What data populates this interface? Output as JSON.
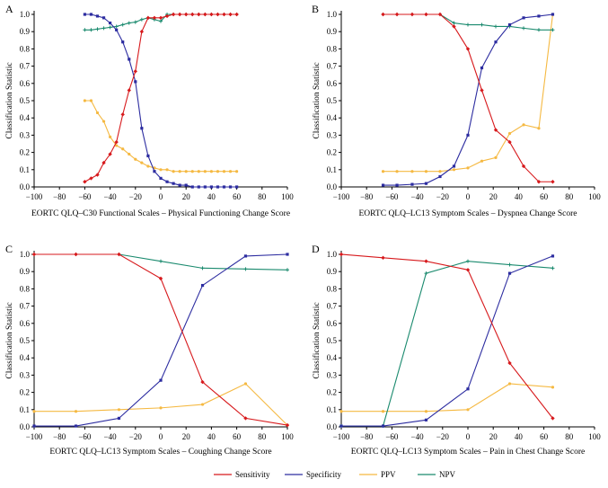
{
  "legend": [
    {
      "name": "Sensitivity",
      "color": "#d7191c"
    },
    {
      "name": "Specificity",
      "color": "#2c2ca0"
    },
    {
      "name": "PPV",
      "color": "#f5b942"
    },
    {
      "name": "NPV",
      "color": "#1a8a6e"
    }
  ],
  "chart_data": [
    {
      "type": "line",
      "panel": "A",
      "xlabel": "EORTC QLQ–C30 Functional Scales – Physical Functioning Change Score",
      "ylabel": "Classification Statistic",
      "xlim": [
        -100,
        100
      ],
      "ylim": [
        0,
        1.0
      ],
      "xticks": [
        -100,
        -80,
        -60,
        -40,
        -20,
        0,
        20,
        40,
        60,
        80,
        100
      ],
      "yticks": [
        0,
        0.1,
        0.2,
        0.3,
        0.4,
        0.5,
        0.6,
        0.7,
        0.8,
        0.9,
        1.0
      ],
      "series": [
        {
          "name": "Sensitivity",
          "x": [
            -60,
            -55,
            -50,
            -45,
            -40,
            -35,
            -30,
            -25,
            -20,
            -15,
            -10,
            -5,
            0,
            5,
            10,
            15,
            20,
            25,
            30,
            35,
            40,
            45,
            50,
            55,
            60
          ],
          "values": [
            0.03,
            0.05,
            0.07,
            0.14,
            0.19,
            0.26,
            0.42,
            0.56,
            0.67,
            0.9,
            0.98,
            0.98,
            0.98,
            0.99,
            1.0,
            1.0,
            1.0,
            1.0,
            1.0,
            1.0,
            1.0,
            1.0,
            1.0,
            1.0,
            1.0
          ]
        },
        {
          "name": "Specificity",
          "x": [
            -60,
            -55,
            -50,
            -45,
            -40,
            -35,
            -30,
            -25,
            -20,
            -15,
            -10,
            -5,
            0,
            5,
            10,
            15,
            20,
            25,
            30,
            35,
            40,
            45,
            50,
            55,
            60
          ],
          "values": [
            1.0,
            1.0,
            0.99,
            0.98,
            0.95,
            0.91,
            0.84,
            0.74,
            0.61,
            0.34,
            0.18,
            0.09,
            0.05,
            0.03,
            0.02,
            0.01,
            0.01,
            0.0,
            0.0,
            0.0,
            0.0,
            0.0,
            0.0,
            0.0,
            0.0
          ]
        },
        {
          "name": "PPV",
          "x": [
            -60,
            -55,
            -50,
            -45,
            -40,
            -35,
            -30,
            -25,
            -20,
            -15,
            -10,
            -5,
            0,
            5,
            10,
            15,
            20,
            25,
            30,
            35,
            40,
            45,
            50,
            55,
            60
          ],
          "values": [
            0.5,
            0.5,
            0.43,
            0.38,
            0.29,
            0.24,
            0.22,
            0.19,
            0.16,
            0.14,
            0.12,
            0.11,
            0.1,
            0.1,
            0.09,
            0.09,
            0.09,
            0.09,
            0.09,
            0.09,
            0.09,
            0.09,
            0.09,
            0.09,
            0.09
          ]
        },
        {
          "name": "NPV",
          "x": [
            -60,
            -55,
            -50,
            -45,
            -40,
            -35,
            -30,
            -25,
            -20,
            -15,
            -10,
            -5,
            0,
            5,
            10,
            15,
            20,
            25,
            30,
            35,
            40,
            45,
            50,
            55,
            60
          ],
          "values": [
            0.91,
            0.91,
            0.915,
            0.92,
            0.925,
            0.93,
            0.94,
            0.95,
            0.955,
            0.97,
            0.98,
            0.97,
            0.96,
            1.0,
            1.0,
            1.0,
            1.0,
            1.0,
            1.0,
            1.0,
            1.0,
            1.0,
            1.0,
            1.0,
            1.0
          ]
        }
      ]
    },
    {
      "type": "line",
      "panel": "B",
      "xlabel": "EORTC QLQ–LC13 Symptom Scales – Dyspnea Change Score",
      "ylabel": "Classification Statistic",
      "xlim": [
        -100,
        100
      ],
      "ylim": [
        0,
        1.0
      ],
      "xticks": [
        -100,
        -80,
        -60,
        -40,
        -20,
        0,
        20,
        40,
        60,
        80,
        100
      ],
      "yticks": [
        0,
        0.1,
        0.2,
        0.3,
        0.4,
        0.5,
        0.6,
        0.7,
        0.8,
        0.9,
        1.0
      ],
      "series": [
        {
          "name": "Sensitivity",
          "x": [
            -67,
            -56,
            -44,
            -33,
            -22,
            -11,
            0,
            11,
            22,
            33,
            44,
            56,
            67
          ],
          "values": [
            1.0,
            1.0,
            1.0,
            1.0,
            1.0,
            0.93,
            0.8,
            0.56,
            0.33,
            0.26,
            0.12,
            0.03,
            0.03
          ]
        },
        {
          "name": "Specificity",
          "x": [
            -67,
            -56,
            -44,
            -33,
            -22,
            -11,
            0,
            11,
            22,
            33,
            44,
            56,
            67
          ],
          "values": [
            0.01,
            0.01,
            0.015,
            0.02,
            0.06,
            0.12,
            0.3,
            0.69,
            0.84,
            0.94,
            0.98,
            0.99,
            1.0
          ]
        },
        {
          "name": "PPV",
          "x": [
            -67,
            -56,
            -44,
            -33,
            -22,
            -11,
            0,
            11,
            22,
            33,
            44,
            56,
            67
          ],
          "values": [
            0.09,
            0.09,
            0.09,
            0.09,
            0.09,
            0.1,
            0.11,
            0.15,
            0.17,
            0.31,
            0.36,
            0.34,
            1.0
          ]
        },
        {
          "name": "NPV",
          "x": [
            -67,
            -56,
            -44,
            -33,
            -22,
            -11,
            0,
            11,
            22,
            33,
            44,
            56,
            67
          ],
          "values": [
            1.0,
            1.0,
            1.0,
            1.0,
            1.0,
            0.95,
            0.94,
            0.94,
            0.93,
            0.93,
            0.92,
            0.91,
            0.91
          ]
        }
      ]
    },
    {
      "type": "line",
      "panel": "C",
      "xlabel": "EORTC QLQ–LC13 Symptom Scales – Coughing Change Score",
      "ylabel": "Classification Statistic",
      "xlim": [
        -100,
        100
      ],
      "ylim": [
        0,
        1.0
      ],
      "xticks": [
        -100,
        -80,
        -60,
        -40,
        -20,
        0,
        20,
        40,
        60,
        80,
        100
      ],
      "yticks": [
        0,
        0.1,
        0.2,
        0.3,
        0.4,
        0.5,
        0.6,
        0.7,
        0.8,
        0.9,
        1.0
      ],
      "series": [
        {
          "name": "Sensitivity",
          "x": [
            -100,
            -67,
            -33,
            0,
            33,
            67,
            100
          ],
          "values": [
            1.0,
            1.0,
            1.0,
            0.86,
            0.26,
            0.05,
            0.01
          ]
        },
        {
          "name": "Specificity",
          "x": [
            -100,
            -67,
            -33,
            0,
            33,
            67,
            100
          ],
          "values": [
            0.005,
            0.005,
            0.05,
            0.27,
            0.82,
            0.99,
            1.0
          ]
        },
        {
          "name": "PPV",
          "x": [
            -100,
            -67,
            -33,
            0,
            33,
            67,
            100
          ],
          "values": [
            0.09,
            0.09,
            0.1,
            0.11,
            0.13,
            0.25,
            0.01
          ]
        },
        {
          "name": "NPV",
          "x": [
            -100,
            -67,
            -33,
            0,
            33,
            67,
            100
          ],
          "values": [
            1.0,
            1.0,
            1.0,
            0.96,
            0.92,
            0.915,
            0.91
          ]
        }
      ]
    },
    {
      "type": "line",
      "panel": "D",
      "xlabel": "EORTC QLQ–LC13 Symptom Scales – Pain in Chest Change Score",
      "ylabel": "Classification Statistic",
      "xlim": [
        -100,
        100
      ],
      "ylim": [
        0,
        1.0
      ],
      "xticks": [
        -100,
        -80,
        -60,
        -40,
        -20,
        0,
        20,
        40,
        60,
        80,
        100
      ],
      "yticks": [
        0,
        0.1,
        0.2,
        0.3,
        0.4,
        0.5,
        0.6,
        0.7,
        0.8,
        0.9,
        1.0
      ],
      "series": [
        {
          "name": "Sensitivity",
          "x": [
            -100,
            -67,
            -33,
            0,
            33,
            67
          ],
          "values": [
            1.0,
            0.98,
            0.96,
            0.91,
            0.37,
            0.05
          ]
        },
        {
          "name": "Specificity",
          "x": [
            -100,
            -67,
            -33,
            0,
            33,
            67
          ],
          "values": [
            0.005,
            0.005,
            0.04,
            0.22,
            0.89,
            0.99
          ]
        },
        {
          "name": "PPV",
          "x": [
            -100,
            -67,
            -33,
            0,
            33,
            67
          ],
          "values": [
            0.09,
            0.09,
            0.09,
            0.1,
            0.25,
            0.23
          ]
        },
        {
          "name": "NPV",
          "x": [
            -100,
            -67,
            -33,
            0,
            33,
            67
          ],
          "values": [
            0.005,
            0.005,
            0.89,
            0.96,
            0.94,
            0.92
          ]
        }
      ]
    }
  ]
}
